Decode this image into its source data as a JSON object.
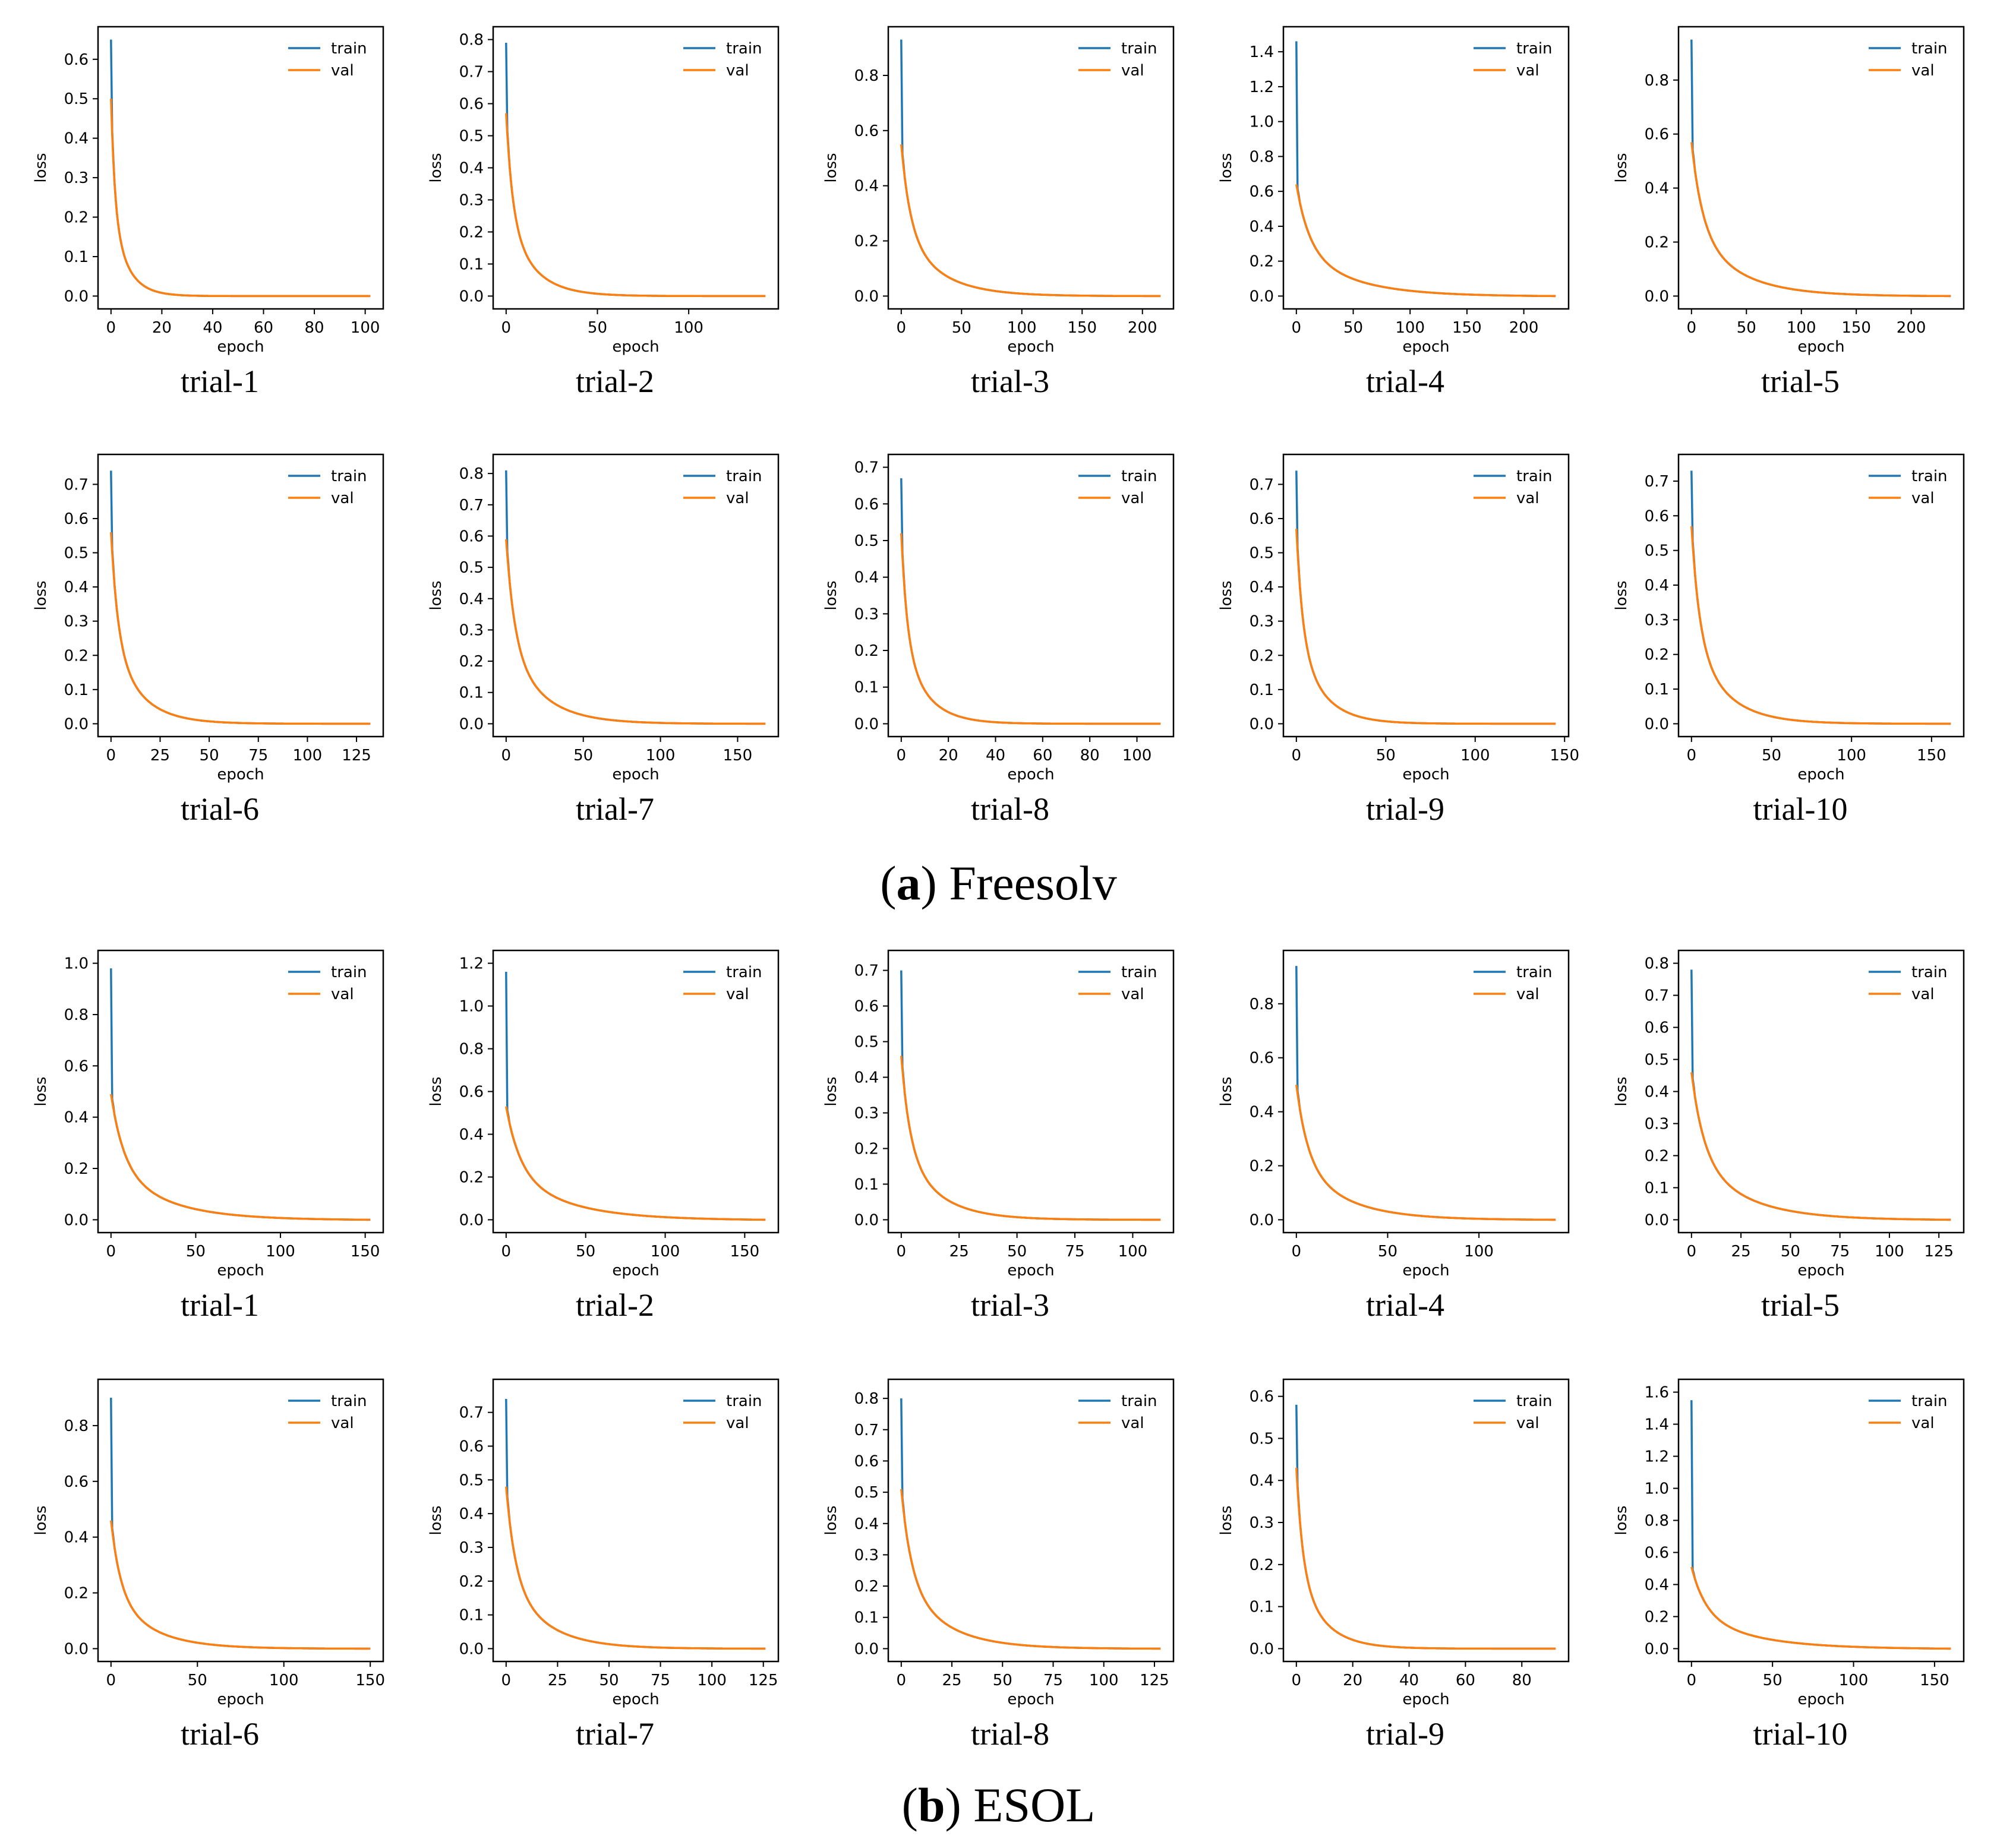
{
  "legend_entries": [
    "train",
    "val"
  ],
  "colors": {
    "train": "#1f77b4",
    "val": "#ff7f0e",
    "axis": "#000000"
  },
  "common": {
    "xlabel": "epoch",
    "ylabel": "loss"
  },
  "panels": [
    {
      "letter": "a",
      "name": "Freesolv",
      "paren_open": "(",
      "paren_close": ")",
      "trials": [
        {
          "label": "trial-1",
          "epochs": 102,
          "xticks": [
            0,
            20,
            40,
            60,
            80,
            100
          ],
          "yticks": [
            "0.0",
            "0.1",
            "0.2",
            "0.3",
            "0.4",
            "0.5",
            "0.6"
          ],
          "ymax": 0.65,
          "train_start": 0.65,
          "val_start": 0.5,
          "rate": 6
        },
        {
          "label": "trial-2",
          "epochs": 142,
          "xticks": [
            0,
            50,
            100
          ],
          "yticks": [
            "0.0",
            "0.1",
            "0.2",
            "0.3",
            "0.4",
            "0.5",
            "0.6",
            "0.7",
            "0.8"
          ],
          "ymax": 0.8,
          "train_start": 0.79,
          "val_start": 0.57,
          "rate": 14
        },
        {
          "label": "trial-3",
          "epochs": 215,
          "xticks": [
            0,
            50,
            100,
            150,
            200
          ],
          "yticks": [
            "0.0",
            "0.2",
            "0.4",
            "0.6",
            "0.8"
          ],
          "ymax": 0.93,
          "train_start": 0.93,
          "val_start": 0.55,
          "rate": 30
        },
        {
          "label": "trial-4",
          "epochs": 228,
          "xticks": [
            0,
            50,
            100,
            150,
            200
          ],
          "yticks": [
            "0.0",
            "0.2",
            "0.4",
            "0.6",
            "0.8",
            "1.0",
            "1.2",
            "1.4"
          ],
          "ymax": 1.47,
          "train_start": 1.46,
          "val_start": 0.64,
          "rate": 45
        },
        {
          "label": "trial-5",
          "epochs": 236,
          "xticks": [
            0,
            50,
            100,
            150,
            200
          ],
          "yticks": [
            "0.0",
            "0.2",
            "0.4",
            "0.6",
            "0.8"
          ],
          "ymax": 0.95,
          "train_start": 0.95,
          "val_start": 0.57,
          "rate": 40
        },
        {
          "label": "trial-6",
          "epochs": 132,
          "xticks": [
            0,
            25,
            50,
            75,
            100,
            125
          ],
          "yticks": [
            "0.0",
            "0.1",
            "0.2",
            "0.3",
            "0.4",
            "0.5",
            "0.6",
            "0.7"
          ],
          "ymax": 0.75,
          "train_start": 0.74,
          "val_start": 0.56,
          "rate": 14
        },
        {
          "label": "trial-7",
          "epochs": 168,
          "xticks": [
            0,
            50,
            100,
            150
          ],
          "yticks": [
            "0.0",
            "0.1",
            "0.2",
            "0.3",
            "0.4",
            "0.5",
            "0.6",
            "0.7",
            "0.8"
          ],
          "ymax": 0.82,
          "train_start": 0.81,
          "val_start": 0.59,
          "rate": 22
        },
        {
          "label": "trial-8",
          "epochs": 110,
          "xticks": [
            0,
            20,
            40,
            60,
            80,
            100
          ],
          "yticks": [
            "0.0",
            "0.1",
            "0.2",
            "0.3",
            "0.4",
            "0.5",
            "0.6",
            "0.7"
          ],
          "ymax": 0.7,
          "train_start": 0.67,
          "val_start": 0.52,
          "rate": 10
        },
        {
          "label": "trial-9",
          "epochs": 145,
          "xticks": [
            0,
            50,
            100,
            150
          ],
          "yticks": [
            "0.0",
            "0.1",
            "0.2",
            "0.3",
            "0.4",
            "0.5",
            "0.6",
            "0.7"
          ],
          "ymax": 0.75,
          "train_start": 0.74,
          "val_start": 0.57,
          "rate": 14
        },
        {
          "label": "trial-10",
          "epochs": 162,
          "xticks": [
            0,
            50,
            100,
            150
          ],
          "yticks": [
            "0.0",
            "0.1",
            "0.2",
            "0.3",
            "0.4",
            "0.5",
            "0.6",
            "0.7"
          ],
          "ymax": 0.74,
          "train_start": 0.73,
          "val_start": 0.57,
          "rate": 20
        }
      ]
    },
    {
      "letter": "b",
      "name": "ESOL",
      "paren_open": "(",
      "paren_close": ")",
      "trials": [
        {
          "label": "trial-1",
          "epochs": 153,
          "xticks": [
            0,
            50,
            100,
            150
          ],
          "yticks": [
            "0.0",
            "0.2",
            "0.4",
            "0.6",
            "0.8",
            "1.0"
          ],
          "ymax": 1.0,
          "train_start": 0.98,
          "val_start": 0.49,
          "rate": 30
        },
        {
          "label": "trial-2",
          "epochs": 163,
          "xticks": [
            0,
            50,
            100,
            150
          ],
          "yticks": [
            "0.0",
            "0.2",
            "0.4",
            "0.6",
            "0.8",
            "1.0",
            "1.2"
          ],
          "ymax": 1.2,
          "train_start": 1.16,
          "val_start": 0.53,
          "rate": 35
        },
        {
          "label": "trial-3",
          "epochs": 112,
          "xticks": [
            0,
            25,
            50,
            75,
            100
          ],
          "yticks": [
            "0.0",
            "0.1",
            "0.2",
            "0.3",
            "0.4",
            "0.5",
            "0.6",
            "0.7"
          ],
          "ymax": 0.72,
          "train_start": 0.7,
          "val_start": 0.46,
          "rate": 15
        },
        {
          "label": "trial-4",
          "epochs": 142,
          "xticks": [
            0,
            50,
            100
          ],
          "yticks": [
            "0.0",
            "0.2",
            "0.4",
            "0.6",
            "0.8"
          ],
          "ymax": 0.95,
          "train_start": 0.94,
          "val_start": 0.5,
          "rate": 25
        },
        {
          "label": "trial-5",
          "epochs": 131,
          "xticks": [
            0,
            25,
            50,
            75,
            100,
            125
          ],
          "yticks": [
            "0.0",
            "0.1",
            "0.2",
            "0.3",
            "0.4",
            "0.5",
            "0.6",
            "0.7",
            "0.8"
          ],
          "ymax": 0.8,
          "train_start": 0.78,
          "val_start": 0.46,
          "rate": 25
        },
        {
          "label": "trial-6",
          "epochs": 150,
          "xticks": [
            0,
            50,
            100,
            150
          ],
          "yticks": [
            "0.0",
            "0.2",
            "0.4",
            "0.6",
            "0.8"
          ],
          "ymax": 0.92,
          "train_start": 0.9,
          "val_start": 0.46,
          "rate": 22
        },
        {
          "label": "trial-7",
          "epochs": 126,
          "xticks": [
            0,
            25,
            50,
            75,
            100,
            125
          ],
          "yticks": [
            "0.0",
            "0.1",
            "0.2",
            "0.3",
            "0.4",
            "0.5",
            "0.6",
            "0.7"
          ],
          "ymax": 0.76,
          "train_start": 0.74,
          "val_start": 0.48,
          "rate": 18
        },
        {
          "label": "trial-8",
          "epochs": 128,
          "xticks": [
            0,
            25,
            50,
            75,
            100,
            125
          ],
          "yticks": [
            "0.0",
            "0.1",
            "0.2",
            "0.3",
            "0.4",
            "0.5",
            "0.6",
            "0.7",
            "0.8"
          ],
          "ymax": 0.82,
          "train_start": 0.8,
          "val_start": 0.51,
          "rate": 20
        },
        {
          "label": "trial-9",
          "epochs": 92,
          "xticks": [
            0,
            20,
            40,
            60,
            80
          ],
          "yticks": [
            "0.0",
            "0.1",
            "0.2",
            "0.3",
            "0.4",
            "0.5",
            "0.6"
          ],
          "ymax": 0.61,
          "train_start": 0.58,
          "val_start": 0.43,
          "rate": 9
        },
        {
          "label": "trial-10",
          "epochs": 160,
          "xticks": [
            0,
            50,
            100,
            150
          ],
          "yticks": [
            "0.0",
            "0.2",
            "0.4",
            "0.6",
            "0.8",
            "1.0",
            "1.2",
            "1.4",
            "1.6"
          ],
          "ymax": 1.6,
          "train_start": 1.55,
          "val_start": 0.51,
          "rate": 35
        }
      ]
    }
  ],
  "chart_data": [
    {
      "type": "line",
      "panel": "(a) Freesolv",
      "title": "trial-1",
      "xlabel": "epoch",
      "ylabel": "loss",
      "xlim": [
        0,
        102
      ],
      "ylim": [
        0,
        0.65
      ],
      "series": [
        {
          "name": "train",
          "start": 0.65,
          "end": 0.0
        },
        {
          "name": "val",
          "start": 0.5,
          "end": 0.0
        }
      ]
    },
    {
      "type": "line",
      "panel": "(a) Freesolv",
      "title": "trial-2",
      "xlabel": "epoch",
      "ylabel": "loss",
      "xlim": [
        0,
        142
      ],
      "ylim": [
        0,
        0.8
      ],
      "series": [
        {
          "name": "train",
          "start": 0.79,
          "end": 0.0
        },
        {
          "name": "val",
          "start": 0.57,
          "end": 0.0
        }
      ]
    },
    {
      "type": "line",
      "panel": "(a) Freesolv",
      "title": "trial-3",
      "xlabel": "epoch",
      "ylabel": "loss",
      "xlim": [
        0,
        215
      ],
      "ylim": [
        0,
        0.93
      ],
      "series": [
        {
          "name": "train",
          "start": 0.93,
          "end": 0.0
        },
        {
          "name": "val",
          "start": 0.55,
          "end": 0.01
        }
      ]
    },
    {
      "type": "line",
      "panel": "(a) Freesolv",
      "title": "trial-4",
      "xlabel": "epoch",
      "ylabel": "loss",
      "xlim": [
        0,
        228
      ],
      "ylim": [
        0,
        1.47
      ],
      "series": [
        {
          "name": "train",
          "start": 1.46,
          "end": 0.0
        },
        {
          "name": "val",
          "start": 0.64,
          "end": 0.0
        }
      ]
    },
    {
      "type": "line",
      "panel": "(a) Freesolv",
      "title": "trial-5",
      "xlabel": "epoch",
      "ylabel": "loss",
      "xlim": [
        0,
        236
      ],
      "ylim": [
        0,
        0.95
      ],
      "series": [
        {
          "name": "train",
          "start": 0.95,
          "end": 0.0
        },
        {
          "name": "val",
          "start": 0.57,
          "end": 0.0
        }
      ]
    },
    {
      "type": "line",
      "panel": "(a) Freesolv",
      "title": "trial-6",
      "xlabel": "epoch",
      "ylabel": "loss",
      "xlim": [
        0,
        132
      ],
      "ylim": [
        0,
        0.75
      ],
      "series": [
        {
          "name": "train",
          "start": 0.74,
          "end": 0.0
        },
        {
          "name": "val",
          "start": 0.56,
          "end": 0.0
        }
      ]
    },
    {
      "type": "line",
      "panel": "(a) Freesolv",
      "title": "trial-7",
      "xlabel": "epoch",
      "ylabel": "loss",
      "xlim": [
        0,
        168
      ],
      "ylim": [
        0,
        0.82
      ],
      "series": [
        {
          "name": "train",
          "start": 0.81,
          "end": 0.0
        },
        {
          "name": "val",
          "start": 0.59,
          "end": 0.01
        }
      ]
    },
    {
      "type": "line",
      "panel": "(a) Freesolv",
      "title": "trial-8",
      "xlabel": "epoch",
      "ylabel": "loss",
      "xlim": [
        0,
        110
      ],
      "ylim": [
        0,
        0.7
      ],
      "series": [
        {
          "name": "train",
          "start": 0.67,
          "end": 0.0
        },
        {
          "name": "val",
          "start": 0.52,
          "end": 0.0
        }
      ]
    },
    {
      "type": "line",
      "panel": "(a) Freesolv",
      "title": "trial-9",
      "xlabel": "epoch",
      "ylabel": "loss",
      "xlim": [
        0,
        145
      ],
      "ylim": [
        0,
        0.75
      ],
      "series": [
        {
          "name": "train",
          "start": 0.74,
          "end": 0.0
        },
        {
          "name": "val",
          "start": 0.57,
          "end": 0.0
        }
      ]
    },
    {
      "type": "line",
      "panel": "(a) Freesolv",
      "title": "trial-10",
      "xlabel": "epoch",
      "ylabel": "loss",
      "xlim": [
        0,
        162
      ],
      "ylim": [
        0,
        0.74
      ],
      "series": [
        {
          "name": "train",
          "start": 0.73,
          "end": 0.0
        },
        {
          "name": "val",
          "start": 0.57,
          "end": 0.0
        }
      ]
    },
    {
      "type": "line",
      "panel": "(b) ESOL",
      "title": "trial-1",
      "xlabel": "epoch",
      "ylabel": "loss",
      "xlim": [
        0,
        153
      ],
      "ylim": [
        0,
        1.0
      ],
      "series": [
        {
          "name": "train",
          "start": 0.98,
          "end": 0.0
        },
        {
          "name": "val",
          "start": 0.49,
          "end": 0.0
        }
      ]
    },
    {
      "type": "line",
      "panel": "(b) ESOL",
      "title": "trial-2",
      "xlabel": "epoch",
      "ylabel": "loss",
      "xlim": [
        0,
        163
      ],
      "ylim": [
        0,
        1.2
      ],
      "series": [
        {
          "name": "train",
          "start": 1.16,
          "end": 0.0
        },
        {
          "name": "val",
          "start": 0.53,
          "end": 0.0
        }
      ]
    },
    {
      "type": "line",
      "panel": "(b) ESOL",
      "title": "trial-3",
      "xlabel": "epoch",
      "ylabel": "loss",
      "xlim": [
        0,
        112
      ],
      "ylim": [
        0,
        0.72
      ],
      "series": [
        {
          "name": "train",
          "start": 0.7,
          "end": 0.0
        },
        {
          "name": "val",
          "start": 0.46,
          "end": 0.0
        }
      ]
    },
    {
      "type": "line",
      "panel": "(b) ESOL",
      "title": "trial-4",
      "xlabel": "epoch",
      "ylabel": "loss",
      "xlim": [
        0,
        142
      ],
      "ylim": [
        0,
        0.95
      ],
      "series": [
        {
          "name": "train",
          "start": 0.94,
          "end": 0.0
        },
        {
          "name": "val",
          "start": 0.5,
          "end": 0.0
        }
      ]
    },
    {
      "type": "line",
      "panel": "(b) ESOL",
      "title": "trial-5",
      "xlabel": "epoch",
      "ylabel": "loss",
      "xlim": [
        0,
        131
      ],
      "ylim": [
        0,
        0.8
      ],
      "series": [
        {
          "name": "train",
          "start": 0.78,
          "end": 0.0
        },
        {
          "name": "val",
          "start": 0.46,
          "end": 0.0
        }
      ]
    },
    {
      "type": "line",
      "panel": "(b) ESOL",
      "title": "trial-6",
      "xlabel": "epoch",
      "ylabel": "loss",
      "xlim": [
        0,
        150
      ],
      "ylim": [
        0,
        0.92
      ],
      "series": [
        {
          "name": "train",
          "start": 0.9,
          "end": 0.0
        },
        {
          "name": "val",
          "start": 0.46,
          "end": 0.0
        }
      ]
    },
    {
      "type": "line",
      "panel": "(b) ESOL",
      "title": "trial-7",
      "xlabel": "epoch",
      "ylabel": "loss",
      "xlim": [
        0,
        126
      ],
      "ylim": [
        0,
        0.76
      ],
      "series": [
        {
          "name": "train",
          "start": 0.74,
          "end": 0.0
        },
        {
          "name": "val",
          "start": 0.48,
          "end": 0.0
        }
      ]
    },
    {
      "type": "line",
      "panel": "(b) ESOL",
      "title": "trial-8",
      "xlabel": "epoch",
      "ylabel": "loss",
      "xlim": [
        0,
        128
      ],
      "ylim": [
        0,
        0.82
      ],
      "series": [
        {
          "name": "train",
          "start": 0.8,
          "end": 0.0
        },
        {
          "name": "val",
          "start": 0.51,
          "end": 0.0
        }
      ]
    },
    {
      "type": "line",
      "panel": "(b) ESOL",
      "title": "trial-9",
      "xlabel": "epoch",
      "ylabel": "loss",
      "xlim": [
        0,
        92
      ],
      "ylim": [
        0,
        0.61
      ],
      "series": [
        {
          "name": "train",
          "start": 0.58,
          "end": 0.0
        },
        {
          "name": "val",
          "start": 0.43,
          "end": 0.0
        }
      ]
    },
    {
      "type": "line",
      "panel": "(b) ESOL",
      "title": "trial-10",
      "xlabel": "epoch",
      "ylabel": "loss",
      "xlim": [
        0,
        160
      ],
      "ylim": [
        0,
        1.6
      ],
      "series": [
        {
          "name": "train",
          "start": 1.55,
          "end": 0.0
        },
        {
          "name": "val",
          "start": 0.51,
          "end": 0.0
        }
      ]
    }
  ]
}
